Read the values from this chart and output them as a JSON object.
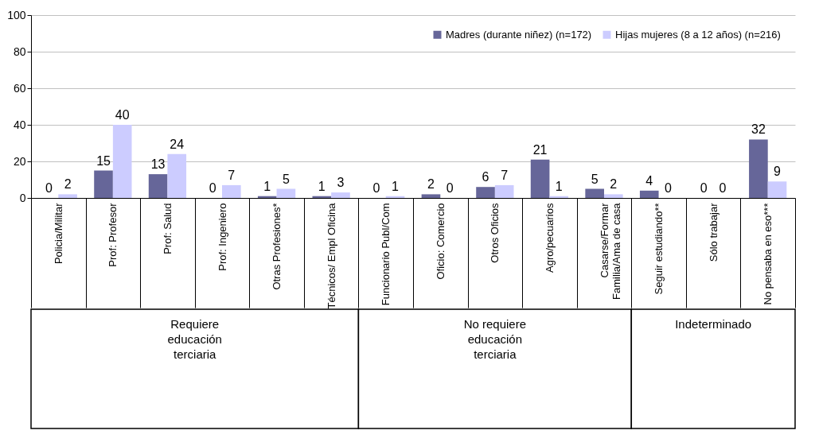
{
  "chart_data": {
    "type": "bar",
    "categories": [
      "Policia/Militar",
      "Prof: Profesor",
      "Prof: Salud",
      "Prof: Ingeniero",
      "Otras Profesiones*",
      "Técnicos/ Empl Oficina",
      "Funcionario Publ/Com",
      "Oficio: Comercio",
      "Otros Oficios",
      "Agro/pecuarios",
      "Casarse/Formar\nFamilia/Ama de casa",
      "Seguir estudiando**",
      "Sólo trabajar",
      "No pensaba en eso***"
    ],
    "series": [
      {
        "name": "Madres (durante niñez) (n=172)",
        "color": "#666699",
        "values": [
          0,
          15,
          13,
          0,
          1,
          1,
          0,
          2,
          6,
          21,
          5,
          4,
          0,
          32
        ]
      },
      {
        "name": "Hijas mujeres (8 a 12 años) (n=216)",
        "color": "#ccccff",
        "values": [
          2,
          40,
          24,
          7,
          5,
          3,
          1,
          0,
          7,
          1,
          2,
          0,
          0,
          9
        ]
      }
    ],
    "ylim": [
      0,
      100
    ],
    "yticks": [
      0,
      20,
      40,
      60,
      80,
      100
    ],
    "grid": "y",
    "legend": "top right",
    "data_labels": true,
    "annotations": [
      "Requiere educación terciaria",
      "No requiere educación terciaria",
      "Indeterminado"
    ]
  }
}
